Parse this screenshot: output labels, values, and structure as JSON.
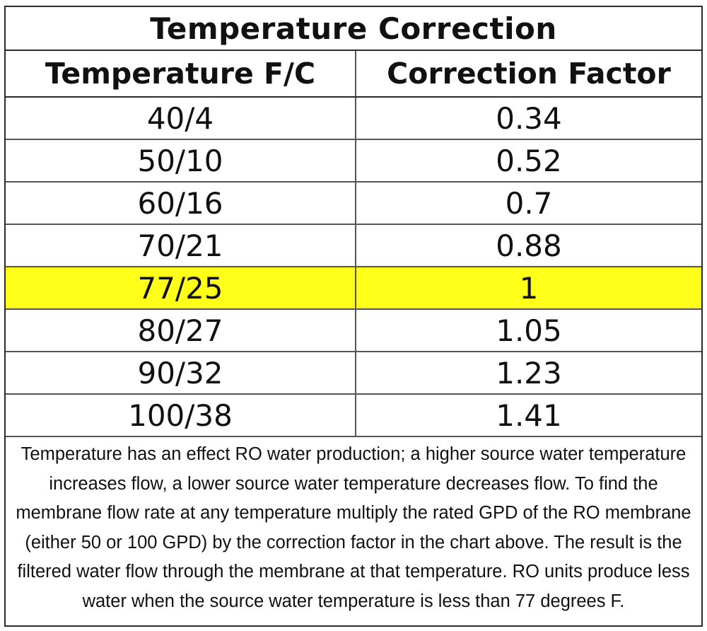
{
  "title": "Temperature Correction",
  "columns": [
    "Temperature F/C",
    "Correction Factor"
  ],
  "rows": [
    {
      "temp": "40/4",
      "factor": "0.34"
    },
    {
      "temp": "50/10",
      "factor": "0.52"
    },
    {
      "temp": "60/16",
      "factor": "0.7"
    },
    {
      "temp": "70/21",
      "factor": "0.88"
    },
    {
      "temp": "77/25",
      "factor": "1"
    },
    {
      "temp": "80/27",
      "factor": "1.05"
    },
    {
      "temp": "90/32",
      "factor": "1.23"
    },
    {
      "temp": "100/38",
      "factor": "1.41"
    }
  ],
  "highlight_row_index": 4,
  "highlight_color": "#ffff1a",
  "note": "Temperature has an effect RO water production; a higher source water temperature increases flow, a lower source water temperature decreases flow. To find the membrane flow rate at any temperature multiply the rated GPD of the RO membrane (either 50 or 100 GPD) by the correction factor in the chart above. The result is the filtered water flow through the membrane at that temperature. RO units produce less water when the source water temperature is less than 77 degrees F."
}
